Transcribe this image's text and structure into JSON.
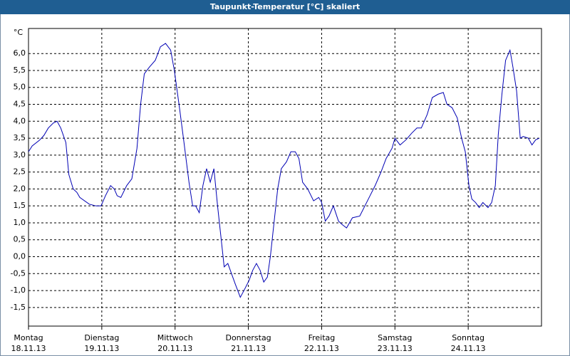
{
  "chart_data": {
    "type": "line",
    "title": "Taupunkt-Temperatur [°C] skaliert",
    "y_unit": "°C",
    "xlim": [
      0,
      7
    ],
    "ylim": [
      -2.05,
      6.74
    ],
    "grid": true,
    "xticks": [
      {
        "value": 0,
        "label": "Montag",
        "date": "18.11.13"
      },
      {
        "value": 1,
        "label": "Dienstag",
        "date": "19.11.13"
      },
      {
        "value": 2,
        "label": "Mittwoch",
        "date": "20.11.13"
      },
      {
        "value": 3,
        "label": "Donnerstag",
        "date": "21.11.13"
      },
      {
        "value": 4,
        "label": "Freitag",
        "date": "22.11.13"
      },
      {
        "value": 5,
        "label": "Samstag",
        "date": "23.11.13"
      },
      {
        "value": 6,
        "label": "Sonntag",
        "date": "24.11.13"
      }
    ],
    "yticks": [
      {
        "value": -1.5,
        "label": "-1,5"
      },
      {
        "value": -1,
        "label": "-1,0"
      },
      {
        "value": -0.5,
        "label": "-0,5"
      },
      {
        "value": 0,
        "label": "0,0"
      },
      {
        "value": 0.5,
        "label": "0,5"
      },
      {
        "value": 1,
        "label": "1,0"
      },
      {
        "value": 1.5,
        "label": "1,5"
      },
      {
        "value": 2,
        "label": "2,0"
      },
      {
        "value": 2.5,
        "label": "2,5"
      },
      {
        "value": 3,
        "label": "3,0"
      },
      {
        "value": 3.5,
        "label": "3,5"
      },
      {
        "value": 4,
        "label": "4,0"
      },
      {
        "value": 4.5,
        "label": "4,5"
      },
      {
        "value": 5,
        "label": "5,0"
      },
      {
        "value": 5.5,
        "label": "5,5"
      },
      {
        "value": 6,
        "label": "6,0"
      }
    ],
    "x": [
      0,
      0.05,
      0.15,
      0.21,
      0.27,
      0.34,
      0.39,
      0.44,
      0.51,
      0.55,
      0.61,
      0.66,
      0.7,
      0.83,
      0.92,
      0.99,
      1.05,
      1.12,
      1.17,
      1.21,
      1.26,
      1.34,
      1.41,
      1.48,
      1.53,
      1.58,
      1.65,
      1.73,
      1.8,
      1.87,
      1.94,
      1.99,
      2.06,
      2.12,
      2.19,
      2.24,
      2.28,
      2.33,
      2.38,
      2.43,
      2.48,
      2.53,
      2.58,
      2.62,
      2.67,
      2.72,
      2.77,
      2.82,
      2.89,
      2.94,
      3.01,
      3.06,
      3.11,
      3.16,
      3.21,
      3.26,
      3.3,
      3.35,
      3.4,
      3.45,
      3.52,
      3.58,
      3.64,
      3.69,
      3.74,
      3.81,
      3.89,
      3.96,
      4.0,
      4.05,
      4.1,
      4.16,
      4.23,
      4.28,
      4.34,
      4.42,
      4.52,
      4.59,
      4.66,
      4.73,
      4.81,
      4.88,
      4.96,
      5.0,
      5.07,
      5.15,
      5.23,
      5.3,
      5.36,
      5.44,
      5.51,
      5.59,
      5.66,
      5.71,
      5.78,
      5.85,
      5.91,
      5.96,
      6.01,
      6.05,
      6.1,
      6.15,
      6.2,
      6.27,
      6.32,
      6.37,
      6.41,
      6.46,
      6.51,
      6.57,
      6.61,
      6.66,
      6.71,
      6.75,
      6.82,
      6.87,
      6.92,
      6.97
    ],
    "series": [
      {
        "name": "Taupunkt",
        "color": "#0000b4",
        "values": [
          3.1,
          3.27,
          3.44,
          3.58,
          3.8,
          3.95,
          4.0,
          3.8,
          3.37,
          2.43,
          2.0,
          1.9,
          1.75,
          1.55,
          1.5,
          1.5,
          1.8,
          2.1,
          2.0,
          1.8,
          1.75,
          2.1,
          2.3,
          3.2,
          4.5,
          5.4,
          5.6,
          5.8,
          6.2,
          6.3,
          6.1,
          5.5,
          4.4,
          3.4,
          2.2,
          1.5,
          1.5,
          1.3,
          2.1,
          2.6,
          2.2,
          2.6,
          1.5,
          0.7,
          -0.3,
          -0.2,
          -0.5,
          -0.8,
          -1.2,
          -1.0,
          -0.7,
          -0.4,
          -0.2,
          -0.4,
          -0.75,
          -0.6,
          0.0,
          1.0,
          2.0,
          2.6,
          2.8,
          3.1,
          3.1,
          2.9,
          2.2,
          2.0,
          1.65,
          1.75,
          1.6,
          1.05,
          1.2,
          1.5,
          1.05,
          0.95,
          0.85,
          1.15,
          1.2,
          1.5,
          1.8,
          2.1,
          2.5,
          2.9,
          3.2,
          3.5,
          3.3,
          3.45,
          3.65,
          3.8,
          3.8,
          4.2,
          4.7,
          4.8,
          4.85,
          4.5,
          4.4,
          4.1,
          3.5,
          3.1,
          2.1,
          1.7,
          1.6,
          1.45,
          1.6,
          1.45,
          1.6,
          2.1,
          3.6,
          4.8,
          5.8,
          6.1,
          5.6,
          4.9,
          3.5,
          3.55,
          3.5,
          3.3,
          3.45,
          3.5
        ]
      }
    ]
  }
}
